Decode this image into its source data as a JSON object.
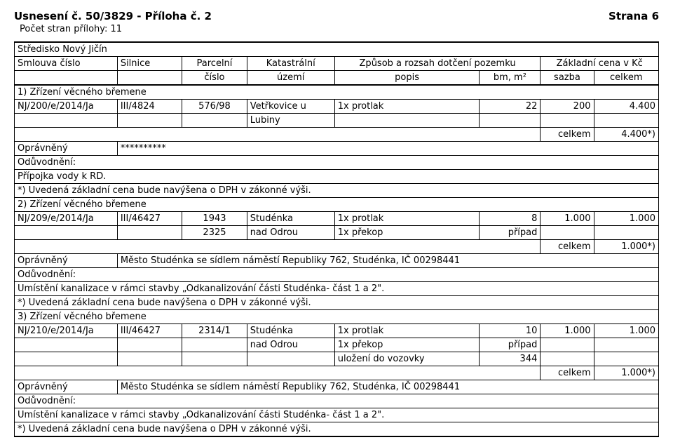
{
  "header": {
    "title_left": "Usnesení č. 50/3829 - Příloha č. 2",
    "title_right": "Strana 6",
    "subtitle": "Počet stran přílohy: 11"
  },
  "table": {
    "stredisko": "Středisko Nový Jičín",
    "head_row1": {
      "smlouva": "Smlouva číslo",
      "silnice": "Silnice",
      "parcelni": "Parcelní",
      "katastr": "Katastrální",
      "zpusob": "Způsob a rozsah dotčení pozemku",
      "zakladni": "Základní cena v Kč"
    },
    "head_row2": {
      "cislo": "číslo",
      "uzemi": "území",
      "popis": "popis",
      "bm": "bm, m²",
      "sazba": "sazba",
      "celkem": "celkem"
    },
    "blocks": [
      {
        "section": "1) Zřízení věcného břemene",
        "rows": [
          {
            "smlouva": "NJ/200/e/2014/Ja",
            "silnice": "III/4824",
            "parc": "576/98",
            "kat": "Vetřkovice u",
            "pop": "1x protlak",
            "bm": "22",
            "saz": "200",
            "cel": "4.400"
          },
          {
            "smlouva": "",
            "silnice": "",
            "parc": "",
            "kat": "Lubiny",
            "pop": "",
            "bm": "",
            "saz": "",
            "cel": ""
          }
        ],
        "celkem_row": {
          "label": "celkem",
          "value": "4.400*)"
        },
        "opravneny_label": "Oprávněný",
        "opravneny_value": "**********",
        "oduvodneni": "Odůvodnění:",
        "text1": "Přípojka vody k RD.",
        "text2": "*) Uvedená základní cena bude navýšena o DPH v zákonné výši."
      },
      {
        "section": "2) Zřízení věcného břemene",
        "rows": [
          {
            "smlouva": "NJ/209/e/2014/Ja",
            "silnice": "III/46427",
            "parc": "1943",
            "kat": "Studénka",
            "pop": "1x protlak",
            "bm": "8",
            "saz": "1.000",
            "cel": "1.000"
          },
          {
            "smlouva": "",
            "silnice": "",
            "parc": "2325",
            "kat": "nad Odrou",
            "pop": "1x překop",
            "bm": "případ",
            "saz": "",
            "cel": ""
          }
        ],
        "celkem_row": {
          "label": "celkem",
          "value": "1.000*)"
        },
        "opravneny_label": "Oprávněný",
        "opravneny_value": "Město Studénka se sídlem náměstí Republiky 762, Studénka, IČ 00298441",
        "oduvodneni": "Odůvodnění:",
        "text1": "Umístění kanalizace v rámci stavby „Odkanalizování části Studénka- část 1 a 2\".",
        "text2": "*) Uvedená základní cena bude navýšena o DPH v zákonné výši."
      },
      {
        "section": "3) Zřízení věcného břemene",
        "rows": [
          {
            "smlouva": "NJ/210/e/2014/Ja",
            "silnice": "III/46427",
            "parc": "2314/1",
            "kat": "Studénka",
            "pop": "1x protlak",
            "bm": "10",
            "saz": "1.000",
            "cel": "1.000"
          },
          {
            "smlouva": "",
            "silnice": "",
            "parc": "",
            "kat": "nad Odrou",
            "pop": "1x překop",
            "bm": "případ",
            "saz": "",
            "cel": ""
          },
          {
            "smlouva": "",
            "silnice": "",
            "parc": "",
            "kat": "",
            "pop": "uložení do vozovky",
            "bm": "344",
            "saz": "",
            "cel": ""
          }
        ],
        "celkem_row": {
          "label": "celkem",
          "value": "1.000*)"
        },
        "opravneny_label": "Oprávněný",
        "opravneny_value": "Město Studénka se sídlem náměstí Republiky 762, Studénka, IČ 00298441",
        "oduvodneni": "Odůvodnění:",
        "text1": "Umístění kanalizace v rámci stavby „Odkanalizování části Studénka- část 1 a 2\".",
        "text2": "*) Uvedená základní cena bude navýšena o DPH v zákonné výši."
      }
    ]
  }
}
